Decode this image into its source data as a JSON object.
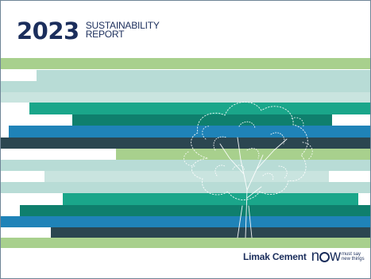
{
  "cover": {
    "year": "2023",
    "title_line1": "SUSTAINABILITY",
    "title_line2": "REPORT"
  },
  "brand": {
    "company": "Limak Cement",
    "logo_word_left": "n",
    "logo_word_right": "w",
    "tagline_line1": "must say",
    "tagline_line2": "new things"
  },
  "colors": {
    "navy": "#1b2e5c",
    "light_green": "#a8d08d",
    "pale_teal": "#b8dcd6",
    "teal": "#1aa68a",
    "dark_teal": "#0f7f6d",
    "blue": "#1f83b8",
    "dark_slate": "#2b4650",
    "mint": "#cfe8c4"
  }
}
